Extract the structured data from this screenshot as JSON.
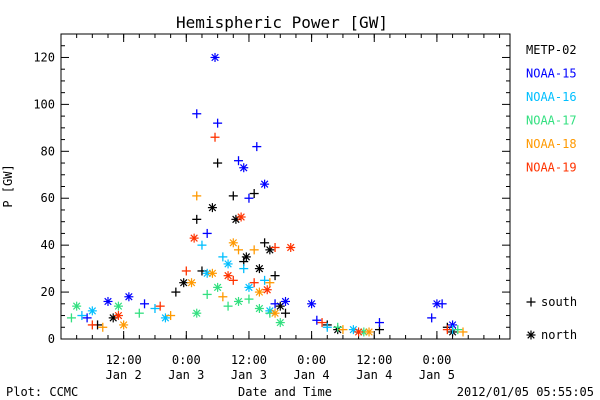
{
  "chart_data": {
    "type": "scatter",
    "title": "Hemispheric Power [GW]",
    "ylabel": "P [GW]",
    "xlabel": "Date and Time",
    "ylim": [
      0,
      130
    ],
    "yticks": [
      0,
      20,
      40,
      60,
      80,
      100,
      120
    ],
    "xlim": [
      "2012-01-02 00:00",
      "2012-01-05 14:00"
    ],
    "xticks": [
      {
        "time": "2012-01-02 12:00",
        "top": "12:00",
        "bottom": "Jan 2"
      },
      {
        "time": "2012-01-03 00:00",
        "top": "0:00",
        "bottom": "Jan 3"
      },
      {
        "time": "2012-01-03 12:00",
        "top": "12:00",
        "bottom": "Jan 3"
      },
      {
        "time": "2012-01-04 00:00",
        "top": "0:00",
        "bottom": "Jan 4"
      },
      {
        "time": "2012-01-04 12:00",
        "top": "12:00",
        "bottom": "Jan 4"
      },
      {
        "time": "2012-01-05 00:00",
        "top": "0:00",
        "bottom": "Jan 5"
      }
    ],
    "markers": [
      {
        "symbol": "+",
        "label": "south"
      },
      {
        "symbol": "*",
        "label": "north"
      }
    ],
    "series": [
      {
        "name": "METP-02",
        "color": "#000000",
        "south": [
          [
            "2012-01-02 07:00",
            6
          ],
          [
            "2012-01-02 22:00",
            20
          ],
          [
            "2012-01-03 02:00",
            51
          ],
          [
            "2012-01-03 03:00",
            29
          ],
          [
            "2012-01-03 06:00",
            75
          ],
          [
            "2012-01-03 09:00",
            61
          ],
          [
            "2012-01-03 11:00",
            33
          ],
          [
            "2012-01-03 13:00",
            62
          ],
          [
            "2012-01-03 15:00",
            41
          ],
          [
            "2012-01-03 17:00",
            27
          ],
          [
            "2012-01-03 19:00",
            11
          ],
          [
            "2012-01-04 03:00",
            6
          ],
          [
            "2012-01-04 13:00",
            4
          ],
          [
            "2012-01-05 02:00",
            5
          ]
        ],
        "north": [
          [
            "2012-01-02 10:00",
            9
          ],
          [
            "2012-01-02 23:30",
            24
          ],
          [
            "2012-01-03 05:00",
            56
          ],
          [
            "2012-01-03 09:30",
            51
          ],
          [
            "2012-01-03 11:30",
            35
          ],
          [
            "2012-01-03 14:00",
            30
          ],
          [
            "2012-01-03 16:00",
            38
          ],
          [
            "2012-01-03 18:00",
            14
          ],
          [
            "2012-01-04 05:00",
            4
          ],
          [
            "2012-01-05 03:00",
            3
          ]
        ]
      },
      {
        "name": "NOAA-15",
        "color": "#0000ff",
        "south": [
          [
            "2012-01-02 05:00",
            9
          ],
          [
            "2012-01-02 16:00",
            15
          ],
          [
            "2012-01-03 02:00",
            96
          ],
          [
            "2012-01-03 04:00",
            45
          ],
          [
            "2012-01-03 06:00",
            92
          ],
          [
            "2012-01-03 10:00",
            76
          ],
          [
            "2012-01-03 12:00",
            60
          ],
          [
            "2012-01-03 13:30",
            82
          ],
          [
            "2012-01-03 17:00",
            15
          ],
          [
            "2012-01-04 01:00",
            8
          ],
          [
            "2012-01-04 13:00",
            7
          ],
          [
            "2012-01-04 23:00",
            9
          ],
          [
            "2012-01-05 01:00",
            15
          ]
        ],
        "north": [
          [
            "2012-01-02 09:00",
            16
          ],
          [
            "2012-01-02 13:00",
            18
          ],
          [
            "2012-01-03 05:30",
            120
          ],
          [
            "2012-01-03 11:00",
            73
          ],
          [
            "2012-01-03 15:00",
            66
          ],
          [
            "2012-01-03 19:00",
            16
          ],
          [
            "2012-01-04 00:00",
            15
          ],
          [
            "2012-01-05 00:00",
            15
          ],
          [
            "2012-01-05 03:00",
            6
          ]
        ]
      },
      {
        "name": "NOAA-16",
        "color": "#00bfff",
        "south": [
          [
            "2012-01-02 04:00",
            10
          ],
          [
            "2012-01-02 18:00",
            13
          ],
          [
            "2012-01-03 03:00",
            40
          ],
          [
            "2012-01-03 07:00",
            35
          ],
          [
            "2012-01-03 11:00",
            30
          ],
          [
            "2012-01-03 15:00",
            25
          ],
          [
            "2012-01-04 03:00",
            5
          ],
          [
            "2012-01-05 03:00",
            4
          ]
        ],
        "north": [
          [
            "2012-01-02 06:00",
            12
          ],
          [
            "2012-01-02 20:00",
            9
          ],
          [
            "2012-01-03 04:00",
            28
          ],
          [
            "2012-01-03 08:00",
            32
          ],
          [
            "2012-01-03 12:00",
            22
          ],
          [
            "2012-01-03 16:00",
            12
          ],
          [
            "2012-01-04 08:00",
            4
          ]
        ]
      },
      {
        "name": "NOAA-17",
        "color": "#33e080",
        "south": [
          [
            "2012-01-02 02:00",
            9
          ],
          [
            "2012-01-02 15:00",
            11
          ],
          [
            "2012-01-03 04:00",
            19
          ],
          [
            "2012-01-03 08:00",
            14
          ],
          [
            "2012-01-03 12:00",
            17
          ],
          [
            "2012-01-03 16:00",
            11
          ],
          [
            "2012-01-04 05:00",
            5
          ],
          [
            "2012-01-05 04:00",
            4
          ]
        ],
        "north": [
          [
            "2012-01-02 03:00",
            14
          ],
          [
            "2012-01-02 11:00",
            14
          ],
          [
            "2012-01-03 02:00",
            11
          ],
          [
            "2012-01-03 06:00",
            22
          ],
          [
            "2012-01-03 10:00",
            16
          ],
          [
            "2012-01-03 14:00",
            13
          ],
          [
            "2012-01-03 18:00",
            7
          ],
          [
            "2012-01-04 10:00",
            3
          ]
        ]
      },
      {
        "name": "NOAA-18",
        "color": "#ff9900",
        "south": [
          [
            "2012-01-02 08:00",
            5
          ],
          [
            "2012-01-02 21:00",
            10
          ],
          [
            "2012-01-03 02:00",
            61
          ],
          [
            "2012-01-03 07:00",
            18
          ],
          [
            "2012-01-03 10:00",
            38
          ],
          [
            "2012-01-03 13:00",
            38
          ],
          [
            "2012-01-03 16:00",
            24
          ],
          [
            "2012-01-04 06:00",
            4
          ],
          [
            "2012-01-05 05:00",
            3
          ]
        ],
        "north": [
          [
            "2012-01-02 12:00",
            6
          ],
          [
            "2012-01-03 01:00",
            24
          ],
          [
            "2012-01-03 05:00",
            28
          ],
          [
            "2012-01-03 09:00",
            41
          ],
          [
            "2012-01-03 14:00",
            20
          ],
          [
            "2012-01-03 17:00",
            11
          ],
          [
            "2012-01-04 11:00",
            3
          ]
        ]
      },
      {
        "name": "NOAA-19",
        "color": "#ff3300",
        "south": [
          [
            "2012-01-02 06:00",
            6
          ],
          [
            "2012-01-02 19:00",
            14
          ],
          [
            "2012-01-03 00:00",
            29
          ],
          [
            "2012-01-03 05:30",
            86
          ],
          [
            "2012-01-03 09:00",
            25
          ],
          [
            "2012-01-03 13:00",
            24
          ],
          [
            "2012-01-03 17:00",
            39
          ],
          [
            "2012-01-04 02:00",
            7
          ],
          [
            "2012-01-05 02:00",
            4
          ]
        ],
        "north": [
          [
            "2012-01-02 11:00",
            10
          ],
          [
            "2012-01-03 01:30",
            43
          ],
          [
            "2012-01-03 08:00",
            27
          ],
          [
            "2012-01-03 10:30",
            52
          ],
          [
            "2012-01-03 15:30",
            21
          ],
          [
            "2012-01-03 20:00",
            39
          ],
          [
            "2012-01-04 09:00",
            3
          ]
        ]
      }
    ]
  },
  "footer": {
    "plot_source": "Plot: CCMC",
    "timestamp": "2012/01/05 05:55:05"
  }
}
